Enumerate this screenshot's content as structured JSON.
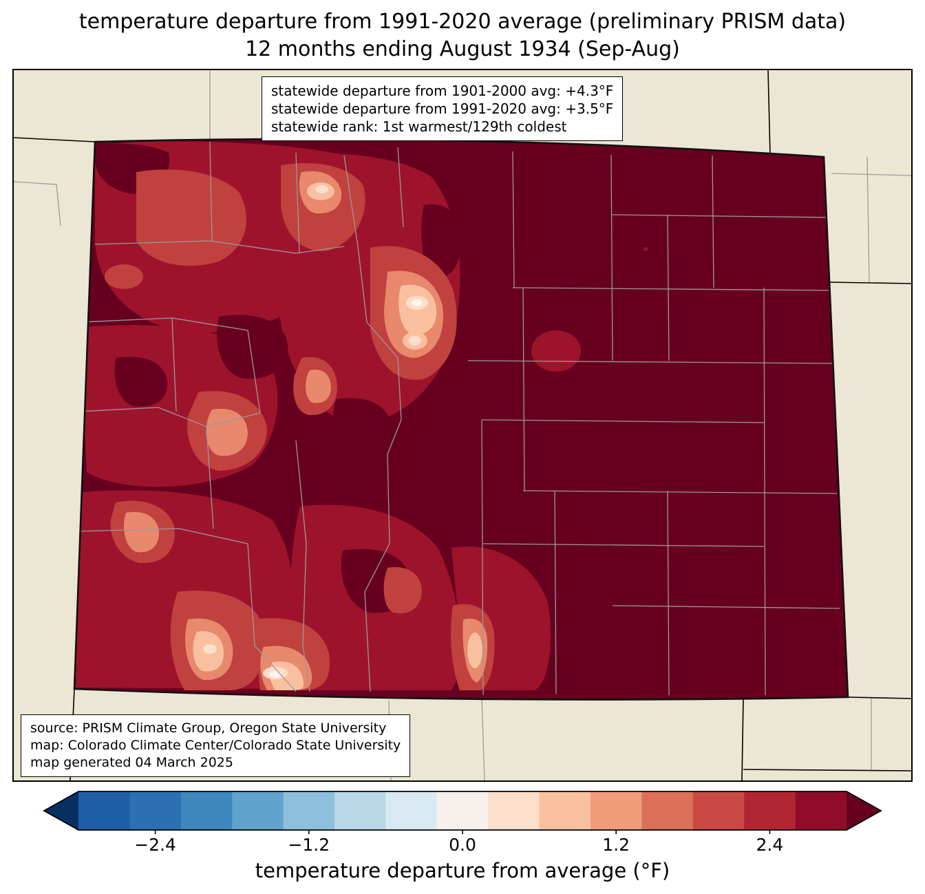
{
  "title": {
    "line1": "temperature departure from 1991-2020 average (preliminary PRISM data)",
    "line2": "12 months ending August 1934 (Sep-Aug)"
  },
  "stats_box": {
    "lines": [
      "statewide departure from 1901-2000 avg: +4.3°F",
      "statewide departure from 1991-2020 avg: +3.5°F",
      "statewide rank: 1st warmest/129th coldest"
    ]
  },
  "source_box": {
    "lines": [
      "source: PRISM Climate Group, Oregon State University",
      "map: Colorado Climate Center/Colorado State University",
      "map generated 04 March 2025"
    ]
  },
  "colorbar": {
    "label": "temperature departure from average (°F)",
    "ticks": [
      "−2.4",
      "−1.2",
      "0.0",
      "1.2",
      "2.4"
    ],
    "tick_values": [
      -2.4,
      -1.2,
      0.0,
      1.2,
      2.4
    ],
    "range": [
      -3.0,
      3.0
    ],
    "segment_colors": [
      "#1d5fa5",
      "#2a70b2",
      "#3d87bd",
      "#60a3cc",
      "#8dc0dc",
      "#b8d8e9",
      "#d9e9f1",
      "#f7f0ea",
      "#fbdfca",
      "#f9c0a0",
      "#f09c7b",
      "#dd7059",
      "#c84a42",
      "#b02633",
      "#8f0c29"
    ],
    "under_color": "#053061",
    "over_color": "#67001f"
  },
  "map": {
    "region": "Colorado",
    "background_color": "#ece7d4",
    "state_border_color": "#111111",
    "county_line_color": "#9a9a9a",
    "dominant_fill_color": "#67001f",
    "fill_palette": [
      "#67001f",
      "#9e132c",
      "#c0413e",
      "#e8886c",
      "#f9c0a0",
      "#fbdfca",
      "#fdf4ec"
    ]
  },
  "chart_data": {
    "type": "heatmap",
    "title": "temperature departure from 1991-2020 average (preliminary PRISM data)",
    "subtitle": "12 months ending August 1934 (Sep-Aug)",
    "region": "Colorado with surrounding state borders",
    "variable": "temperature departure from average (°F)",
    "statewide_departure_from_1901_2000_avg_F": 4.3,
    "statewide_departure_from_1991_2020_avg_F": 3.5,
    "statewide_rank": "1st warmest/129th coldest",
    "colorbar_range_F": [
      -3.0,
      3.0
    ],
    "colorbar_tick_values_F": [
      -2.4,
      -1.2,
      0.0,
      1.2,
      2.4
    ],
    "legend_position": "bottom horizontal colorbar with under/over arrows",
    "spatial_pattern": "entire state well above average; darkest (strongest) departures over the eastern plains and much of the west; weaker departures (roughly +0.5 to +2°F) in central and north-central mountains and in south-central valleys, with a few near-zero cream/white pockets"
  }
}
